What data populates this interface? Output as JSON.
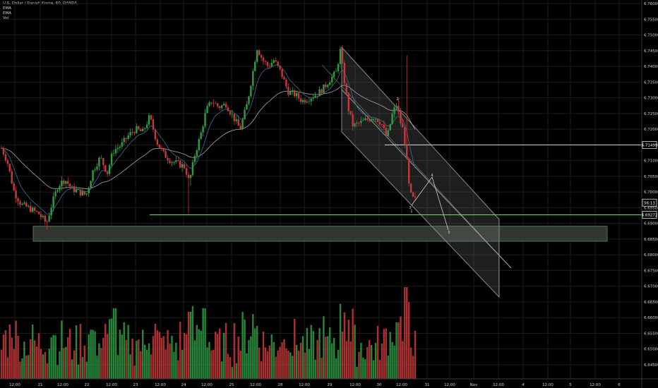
{
  "legend": {
    "symbol": "U.S. Dollar / Danish Krone, 60, OANDA",
    "line2": "EMA",
    "line3": "EMA",
    "line4": "Vol"
  },
  "chart_data": {
    "type": "candlestick",
    "symbol": "U.S. Dollar / Danish Krone",
    "interval": "60",
    "source": "OANDA",
    "y_axis": {
      "ticks": [
        "6.76000",
        "6.75500",
        "6.75000",
        "6.74500",
        "6.74000",
        "6.73500",
        "6.73000",
        "6.72500",
        "6.72000",
        "6.71500",
        "6.71000",
        "6.70500",
        "6.70000",
        "6.69500",
        "6.69000",
        "6.68500",
        "6.68000",
        "6.67500",
        "6.67000",
        "6.66500",
        "6.66000",
        "6.65500",
        "6.65000",
        "6.64500"
      ],
      "range": [
        6.644,
        6.7605
      ]
    },
    "x_axis": {
      "ticks": [
        "12:00",
        "21",
        "12:00",
        "22",
        "12:00",
        "23",
        "12:00",
        "24",
        "12:00",
        "25",
        "12:00",
        "28",
        "12:00",
        "29",
        "12:00",
        "30",
        "12:00",
        "31",
        "12:00",
        "Nov",
        "12:00",
        "4",
        "12:00",
        "5",
        "12:00",
        "6"
      ]
    },
    "price_labels": [
      {
        "text": "6.71499",
        "value": 6.71499
      },
      {
        "text": "56:13",
        "value": 6.6966
      },
      {
        "text": "6.69272",
        "value": 6.69272
      }
    ],
    "horizontal_lines": [
      {
        "value": 6.71499,
        "from": "30 04:00",
        "to": "axis"
      },
      {
        "value": 6.69272,
        "from": "23 06:00",
        "to": "axis"
      }
    ],
    "support_zone": {
      "low": 6.6843,
      "high": 6.6891,
      "from": "21 00:00 (approx)",
      "to": "5 12:00 (approx)"
    },
    "channel": {
      "upper": [
        [
          "29 04:00",
          6.7465
        ],
        [
          "Nov 16:00",
          6.6938
        ]
      ],
      "lower": [
        [
          "29 04:00",
          6.7216
        ],
        [
          "Nov 16:00",
          6.6714
        ]
      ]
    },
    "wave_labels": [
      "1",
      "2",
      "3",
      "4",
      "5"
    ],
    "ema_fast": "short period EMA (overlay)",
    "ema_slow": "long period EMA (overlay)",
    "volume": "histogram at bottom, colored by candle direction",
    "colors": {
      "up": "#2e9e44",
      "down": "#c8393b",
      "ema_fast": "#3a6f96",
      "ema_slow": "#a8a8a8",
      "zone": "#4a7a4a",
      "channel": "#8a8a8a",
      "hline": "#d9d9d9",
      "green_line": "#7bd17b",
      "background": "#000000",
      "grid": "#1c1c1c"
    }
  }
}
